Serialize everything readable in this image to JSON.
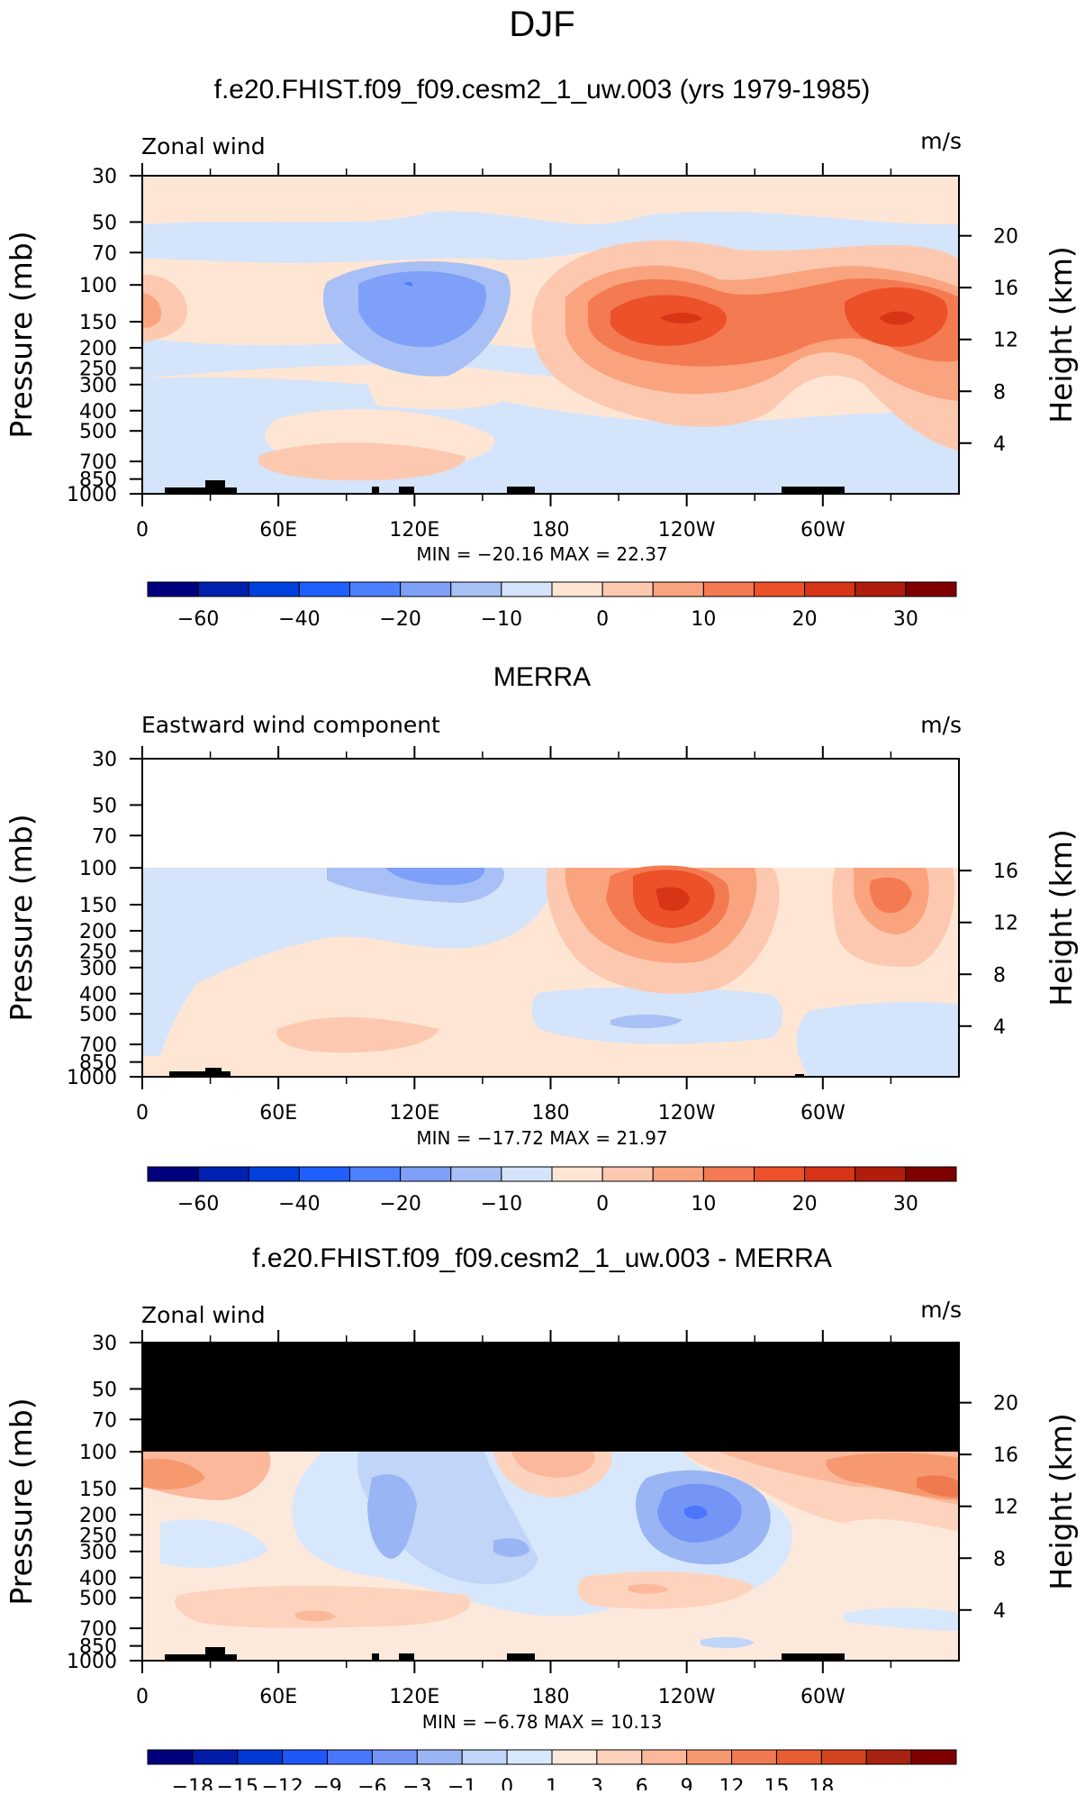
{
  "page_title": "DJF",
  "panels": [
    {
      "title": "f.e20.FHIST.f09_f09.cesm2_1_uw.003 (yrs 1979-1985)",
      "left_label": "Zonal wind",
      "units": "m/s",
      "stats": "MIN =  −20.16   MAX =  22.37",
      "right_ticks": [
        "20",
        "16",
        "12",
        "8",
        "4"
      ],
      "cbar_labels": [
        "−60",
        "−40",
        "−20",
        "−10",
        "0",
        "10",
        "20",
        "30"
      ]
    },
    {
      "title": "MERRA",
      "left_label": "Eastward wind component",
      "units": "m/s",
      "stats": "MIN =  −17.72   MAX =  21.97",
      "right_ticks": [
        "16",
        "12",
        "8",
        "4"
      ],
      "cbar_labels": [
        "−60",
        "−40",
        "−20",
        "−10",
        "0",
        "10",
        "20",
        "30"
      ]
    },
    {
      "title": "f.e20.FHIST.f09_f09.cesm2_1_uw.003 - MERRA",
      "left_label": "Zonal wind",
      "units": "m/s",
      "stats": "MIN =   −6.78   MAX =  10.13",
      "right_ticks": [
        "20",
        "16",
        "12",
        "8",
        "4"
      ],
      "cbar_labels": [
        "−18",
        "−15",
        "−12",
        "−9",
        "−6",
        "−3",
        "−1",
        "0",
        "1",
        "3",
        "6",
        "9",
        "12",
        "15",
        "18"
      ]
    }
  ],
  "axes": {
    "x_ticks": [
      "0",
      "60E",
      "120E",
      "180",
      "120W",
      "60W"
    ],
    "y_ticks": [
      "30",
      "50",
      "70",
      "100",
      "150",
      "200",
      "250",
      "300",
      "400",
      "500",
      "700",
      "850",
      "1000"
    ],
    "y_label": "Pressure (mb)",
    "y2_label": "Height (km)"
  },
  "colors": {
    "cbar16": [
      "#00007f",
      "#0020b0",
      "#0040dd",
      "#1f5fff",
      "#4d80ff",
      "#7ea0f8",
      "#a8c0f5",
      "#d4e4fa",
      "#ffe6d4",
      "#fcc9b0",
      "#f9a47e",
      "#f47a52",
      "#ec5129",
      "#d73516",
      "#b11d0c",
      "#7f0000"
    ],
    "cbar18": [
      "#00007f",
      "#001ca8",
      "#0038d2",
      "#1f58f8",
      "#4a77fc",
      "#7595f6",
      "#9ab5f4",
      "#c0d5f8",
      "#d8e8fc",
      "#fde9dc",
      "#fdd3bd",
      "#fbb89b",
      "#f7996f",
      "#f07a50",
      "#e85e33",
      "#d4441f",
      "#a82311",
      "#7f0000"
    ]
  },
  "chart_data": [
    {
      "type": "heatmap",
      "title": "f.e20.FHIST.f09_f09.cesm2_1_uw.003 (yrs 1979-1985)",
      "subtitle": "Zonal wind",
      "units": "m/s",
      "x_range": [
        "0",
        "360"
      ],
      "y_range_mb": [
        1000,
        30
      ],
      "y2_range_km": [
        4,
        20
      ],
      "min": -20.16,
      "max": 22.37,
      "contour_levels": [
        -70,
        -60,
        -50,
        -40,
        -30,
        -20,
        -15,
        -10,
        -5,
        0,
        5,
        10,
        15,
        20,
        25,
        30,
        35
      ]
    },
    {
      "type": "heatmap",
      "title": "MERRA",
      "subtitle": "Eastward wind component",
      "units": "m/s",
      "y_range_mb": [
        1000,
        100
      ],
      "y2_range_km": [
        4,
        16
      ],
      "min": -17.72,
      "max": 21.97
    },
    {
      "type": "heatmap",
      "title": "f.e20.FHIST.f09_f09.cesm2_1_uw.003 - MERRA",
      "subtitle": "Zonal wind",
      "units": "m/s",
      "y_range_mb": [
        1000,
        30
      ],
      "y2_range_km": [
        4,
        20
      ],
      "min": -6.78,
      "max": 10.13,
      "contour_levels": [
        -18,
        -15,
        -12,
        -9,
        -6,
        -3,
        -1,
        0,
        1,
        3,
        6,
        9,
        12,
        15,
        18
      ]
    }
  ]
}
